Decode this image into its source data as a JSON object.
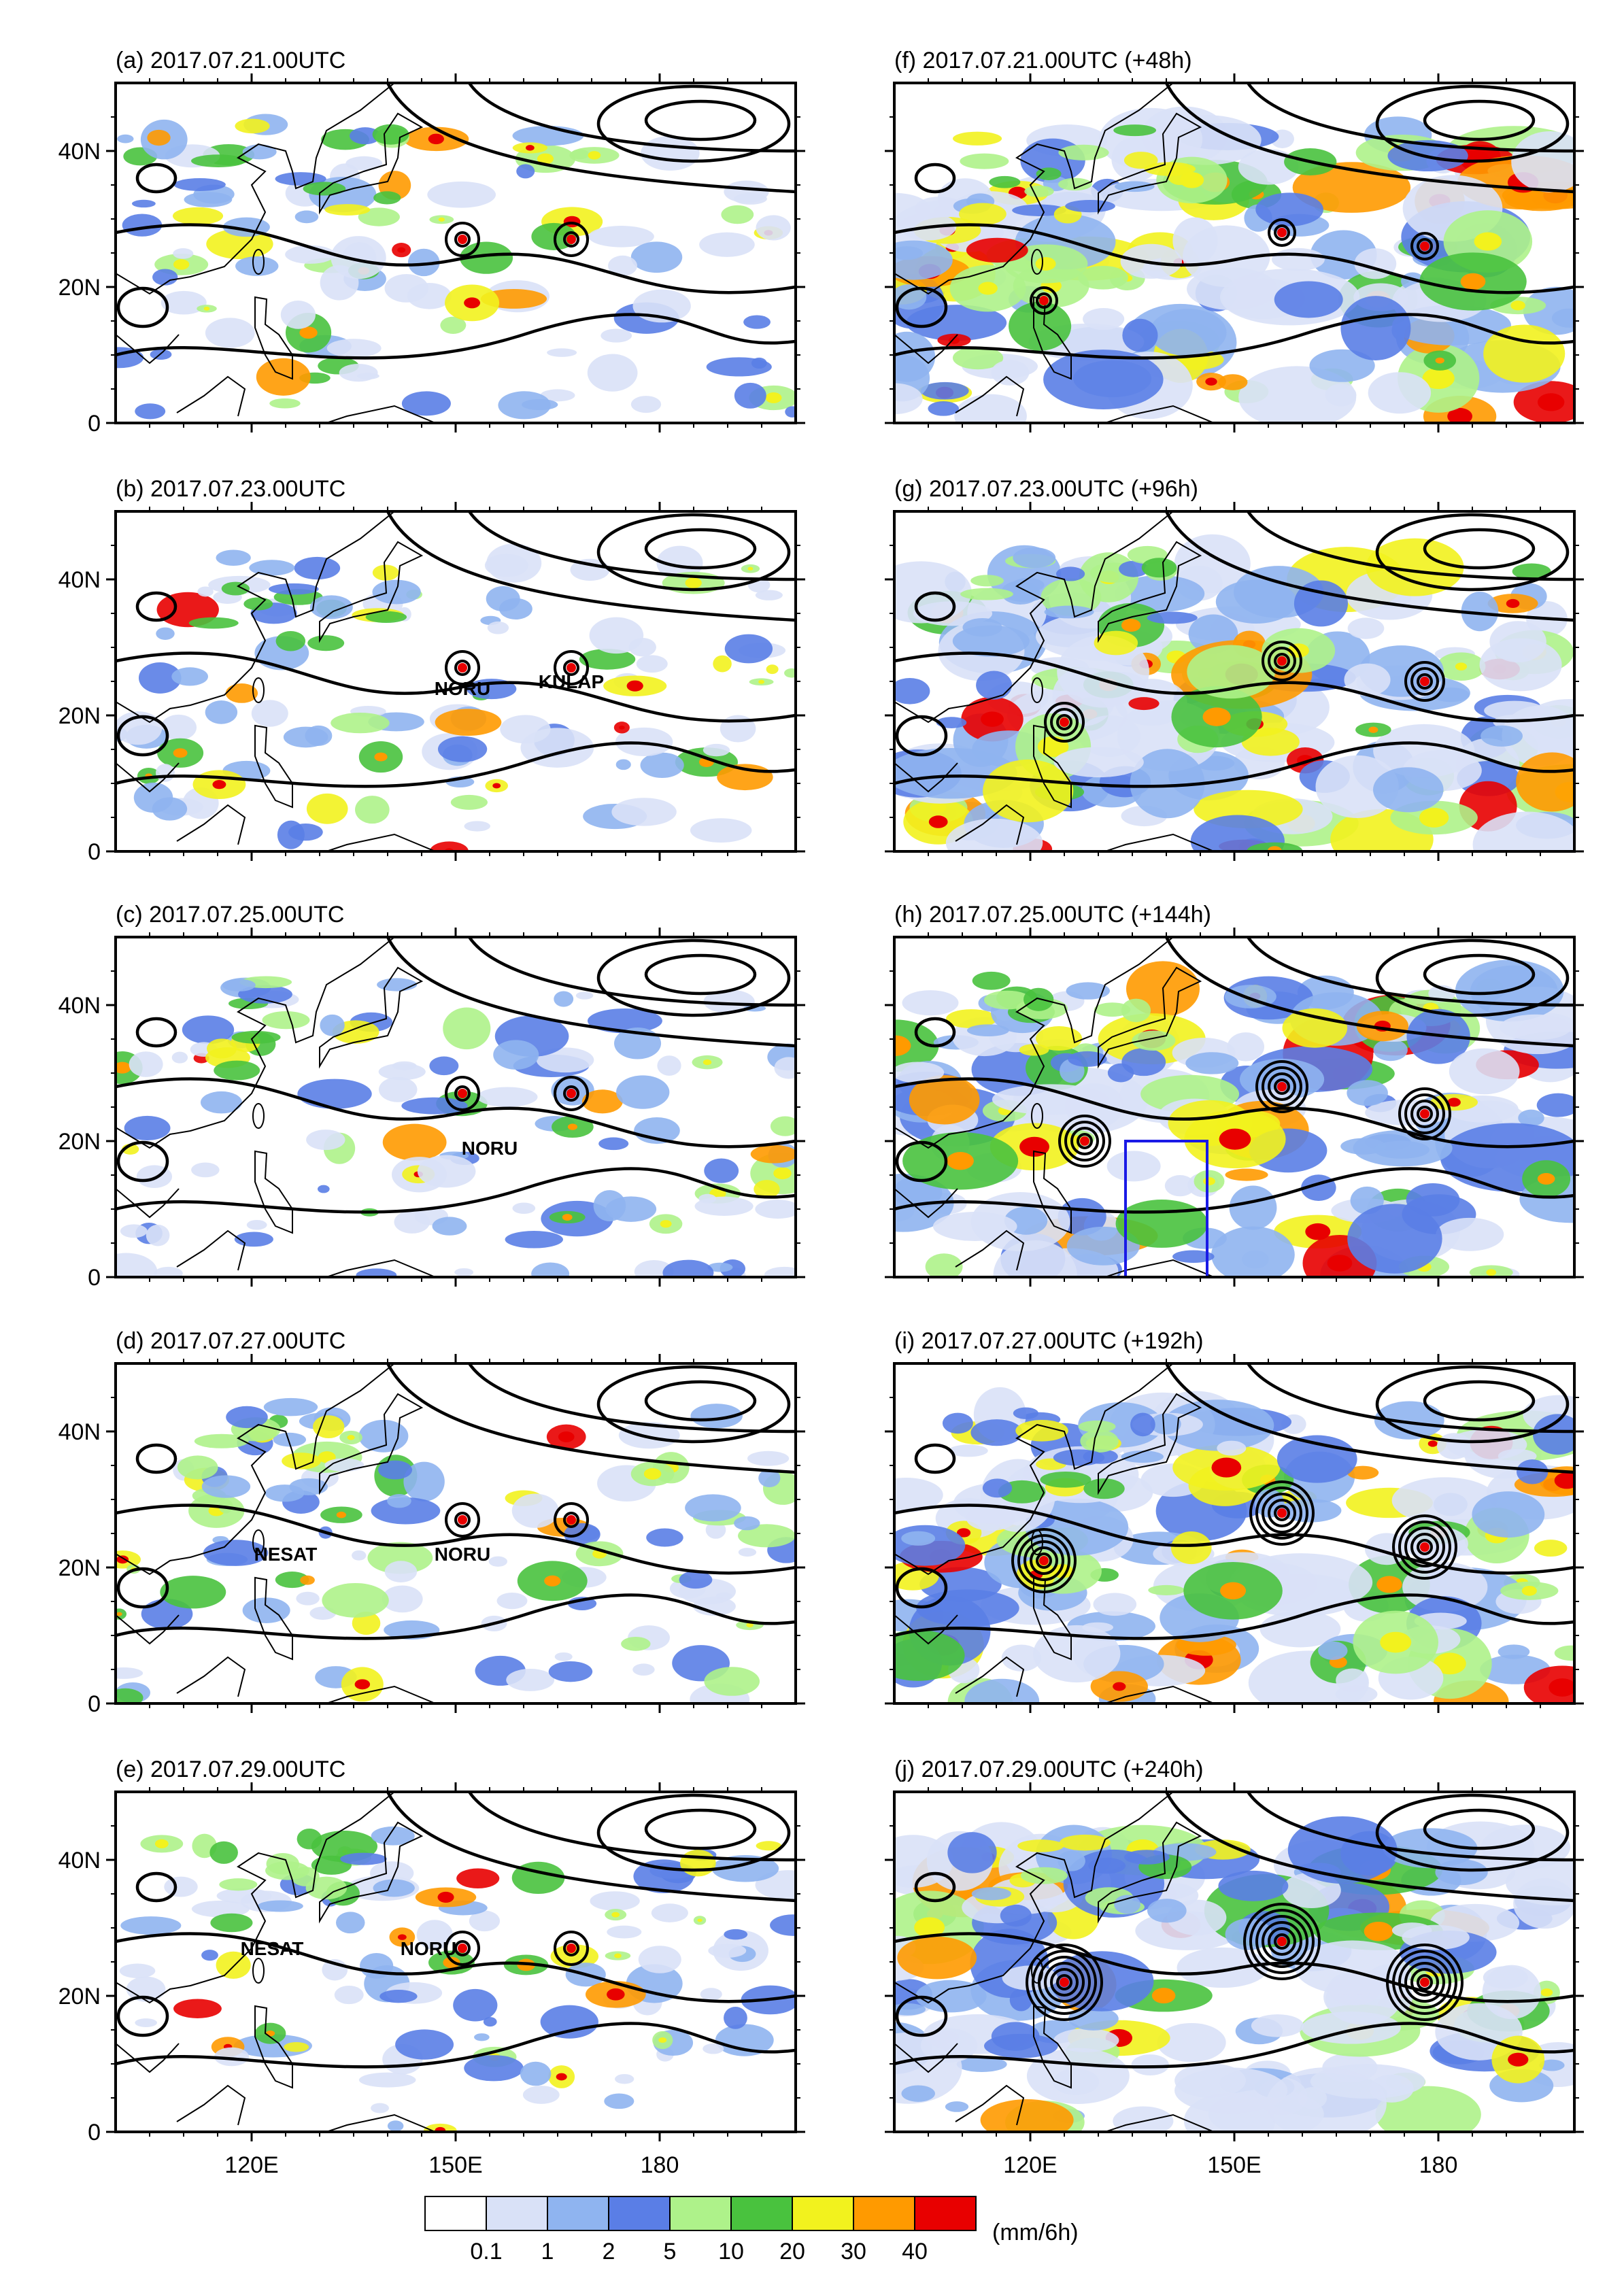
{
  "figure": {
    "panels": [
      {
        "id": "a",
        "title": "(a) 2017.07.21.00UTC",
        "storms": []
      },
      {
        "id": "b",
        "title": "(b) 2017.07.23.00UTC",
        "storms": [
          {
            "name": "NORU",
            "lon": 151,
            "lat": 24
          },
          {
            "name": "KULAP",
            "lon": 167,
            "lat": 25
          }
        ]
      },
      {
        "id": "c",
        "title": "(c) 2017.07.25.00UTC",
        "storms": [
          {
            "name": "NORU",
            "lon": 155,
            "lat": 19
          }
        ]
      },
      {
        "id": "d",
        "title": "(d) 2017.07.27.00UTC",
        "storms": [
          {
            "name": "NESAT",
            "lon": 125,
            "lat": 22
          },
          {
            "name": "NORU",
            "lon": 151,
            "lat": 22
          }
        ]
      },
      {
        "id": "e",
        "title": "(e) 2017.07.29.00UTC",
        "storms": [
          {
            "name": "NESAT",
            "lon": 123,
            "lat": 27
          },
          {
            "name": "NORU",
            "lon": 146,
            "lat": 27
          }
        ]
      },
      {
        "id": "f",
        "title": "(f) 2017.07.21.00UTC (+48h)",
        "storms": []
      },
      {
        "id": "g",
        "title": "(g) 2017.07.23.00UTC (+96h)",
        "storms": []
      },
      {
        "id": "h",
        "title": "(h) 2017.07.25.00UTC (+144h)",
        "storms": []
      },
      {
        "id": "i",
        "title": "(i) 2017.07.27.00UTC (+192h)",
        "storms": []
      },
      {
        "id": "j",
        "title": "(j) 2017.07.29.00UTC (+240h)",
        "storms": []
      }
    ],
    "lat_ticks": [
      "40N",
      "20N",
      "0"
    ],
    "lon_ticks": [
      "120E",
      "150E",
      "180"
    ],
    "colorbar": {
      "levels": [
        "0.1",
        "1",
        "2",
        "5",
        "10",
        "20",
        "30",
        "40"
      ],
      "colors": [
        "#ffffff",
        "#d9e1f7",
        "#8fb4f0",
        "#5a7ee6",
        "#aef28a",
        "#49c23e",
        "#f2f21e",
        "#ff9a00",
        "#e80000"
      ],
      "unit": "(mm/6h)"
    },
    "box_region": {
      "panel": "h",
      "lon_min": 134,
      "lon_max": 146,
      "lat_min": 0,
      "lat_max": 20
    }
  }
}
